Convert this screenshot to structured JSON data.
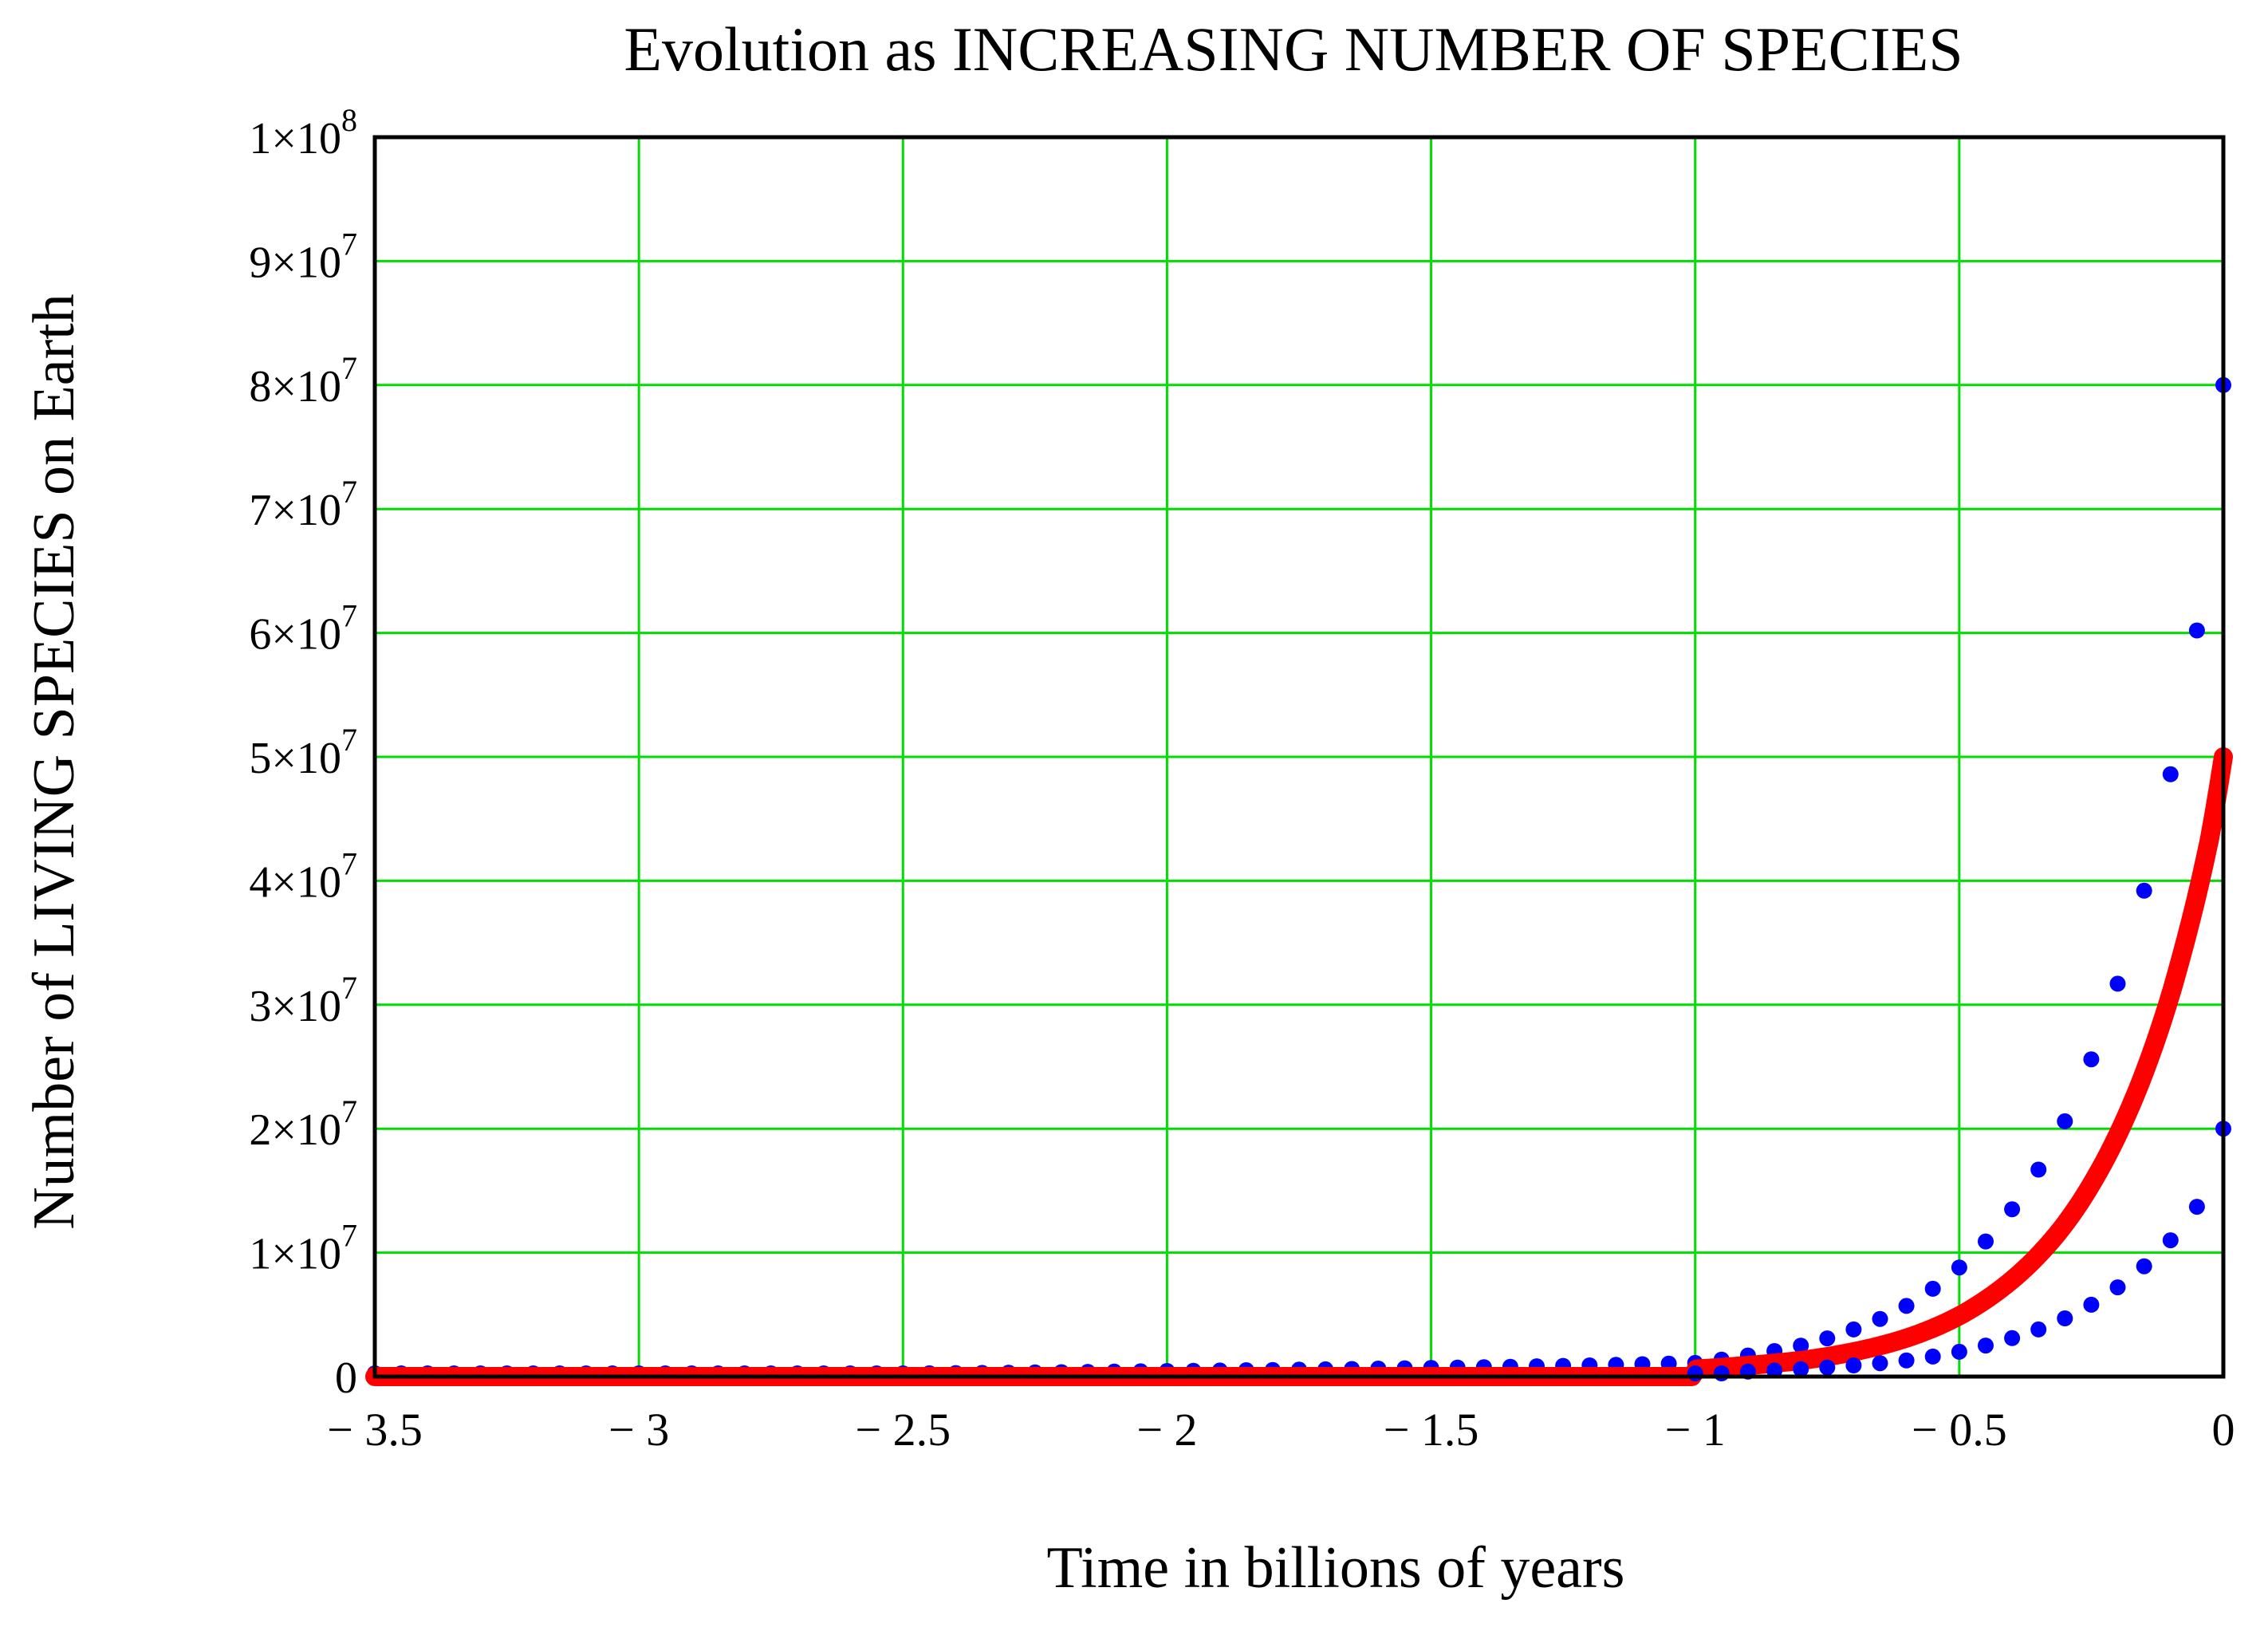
{
  "chart_data": {
    "type": "line",
    "title": "Evolution as INCREASING NUMBER OF SPECIES",
    "xlabel": "Time in billions of years",
    "ylabel": "Number of LIVING SPECIES on Earth",
    "xlim": [
      -3.5,
      0
    ],
    "ylim": [
      0,
      100000000
    ],
    "grid": true,
    "x_ticks": [
      {
        "value": -3.5,
        "label": "− 3.5"
      },
      {
        "value": -3.0,
        "label": "− 3"
      },
      {
        "value": -2.5,
        "label": "− 2.5"
      },
      {
        "value": -2.0,
        "label": "− 2"
      },
      {
        "value": -1.5,
        "label": "− 1.5"
      },
      {
        "value": -1.0,
        "label": "− 1"
      },
      {
        "value": -0.5,
        "label": "− 0.5"
      },
      {
        "value": 0,
        "label": "0"
      }
    ],
    "y_ticks": [
      {
        "value": 0,
        "label": "0",
        "exp": ""
      },
      {
        "value": 10000000,
        "label": "1×10",
        "exp": "7"
      },
      {
        "value": 20000000,
        "label": "2×10",
        "exp": "7"
      },
      {
        "value": 30000000,
        "label": "3×10",
        "exp": "7"
      },
      {
        "value": 40000000,
        "label": "4×10",
        "exp": "7"
      },
      {
        "value": 50000000,
        "label": "5×10",
        "exp": "7"
      },
      {
        "value": 60000000,
        "label": "6×10",
        "exp": "7"
      },
      {
        "value": 70000000,
        "label": "7×10",
        "exp": "7"
      },
      {
        "value": 80000000,
        "label": "8×10",
        "exp": "7"
      },
      {
        "value": 90000000,
        "label": "9×10",
        "exp": "7"
      },
      {
        "value": 100000000,
        "label": "1×10",
        "exp": "8"
      }
    ],
    "series": [
      {
        "name": "upper bound",
        "style": "dotted",
        "color": "#0000ff",
        "x": [
          -3.5,
          -3.0,
          -2.5,
          -2.0,
          -1.5,
          -1.2,
          -1.0,
          -0.9,
          -0.8,
          -0.7,
          -0.6,
          -0.5,
          -0.45,
          -0.4,
          -0.35,
          -0.3,
          -0.25,
          -0.2,
          -0.15,
          -0.1,
          -0.075,
          -0.05,
          -0.025,
          0
        ],
        "y": [
          7000,
          56000,
          250000,
          450000,
          700000,
          900000,
          1100000,
          1700000,
          2500000,
          3800000,
          5700000,
          8800000,
          10900000,
          13500000,
          16700000,
          20600000,
          25600000,
          31700000,
          39200000,
          48600000,
          54100000,
          60200000,
          67000000,
          80000000
        ]
      },
      {
        "name": "mean",
        "style": "solid",
        "color": "#ff0000",
        "x": [
          -3.5,
          -3.0,
          -2.5,
          -2.0,
          -1.5,
          -1.2,
          -1.0,
          -0.9,
          -0.8,
          -0.7,
          -0.6,
          -0.5,
          -0.45,
          -0.4,
          -0.35,
          -0.3,
          -0.25,
          -0.2,
          -0.15,
          -0.1,
          -0.075,
          -0.05,
          -0.025,
          0
        ],
        "y": [
          0,
          0,
          0,
          0,
          0,
          0,
          600000,
          900000,
          1300000,
          2000000,
          3100000,
          4900000,
          6200000,
          7800000,
          9800000,
          12300000,
          15500000,
          19500000,
          24500000,
          30800000,
          34600000,
          38800000,
          43600000,
          50000000
        ]
      },
      {
        "name": "lower bound",
        "style": "dotted",
        "color": "#0000ff",
        "x": [
          -1.0,
          -0.9,
          -0.8,
          -0.7,
          -0.6,
          -0.5,
          -0.45,
          -0.4,
          -0.35,
          -0.3,
          -0.25,
          -0.2,
          -0.15,
          -0.1,
          -0.075,
          -0.05,
          -0.025,
          0
        ],
        "y": [
          100000,
          400000,
          600000,
          900000,
          1300000,
          2000000,
          2500000,
          3100000,
          3800000,
          4700000,
          5800000,
          7200000,
          8900000,
          11000000,
          12300000,
          13700000,
          15200000,
          20000000
        ]
      }
    ]
  }
}
